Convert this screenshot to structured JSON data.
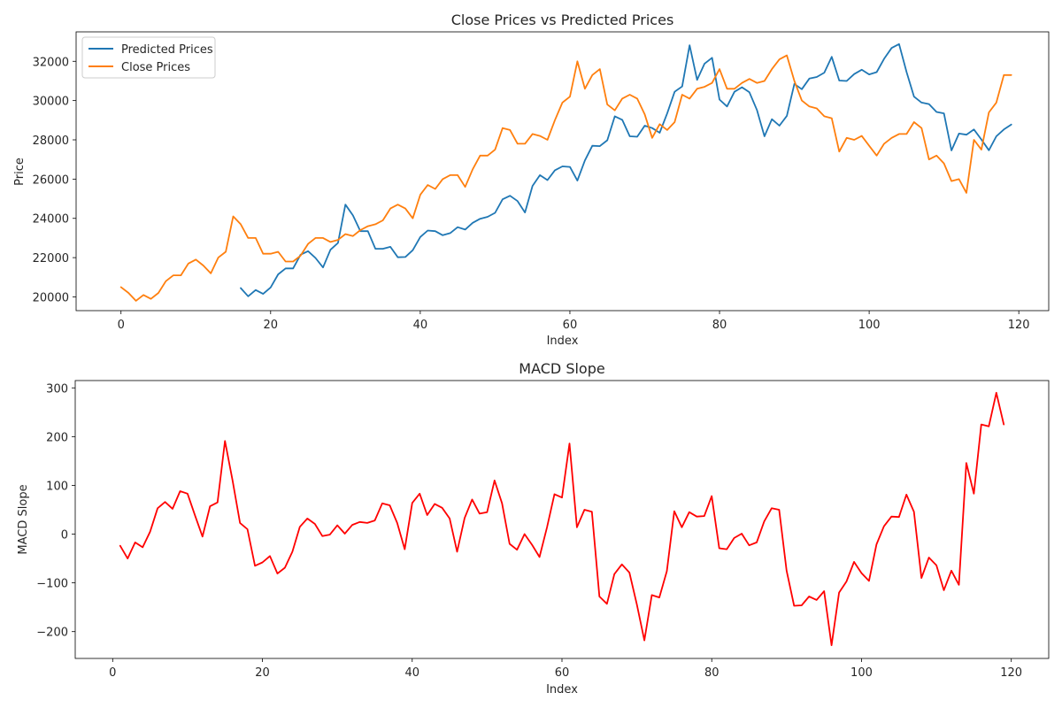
{
  "chart_data": [
    {
      "type": "line",
      "title": "Close Prices vs Predicted Prices",
      "xlabel": "Index",
      "ylabel": "Price",
      "xlim": [
        -6,
        124
      ],
      "ylim": [
        19300,
        33500
      ],
      "xticks": [
        0,
        20,
        40,
        60,
        80,
        100,
        120
      ],
      "yticks": [
        20000,
        22000,
        24000,
        26000,
        28000,
        30000,
        32000
      ],
      "legend": "top-left",
      "grid": false,
      "series": [
        {
          "name": "Predicted Prices",
          "color": "#1f77b4",
          "x_start": 16,
          "values": [
            20450,
            20030,
            20350,
            20150,
            20480,
            21150,
            21450,
            21450,
            22150,
            22330,
            21980,
            21500,
            22400,
            22750,
            24700,
            24150,
            23350,
            23350,
            22450,
            22450,
            22550,
            22020,
            22030,
            22380,
            23050,
            23380,
            23350,
            23140,
            23250,
            23550,
            23430,
            23770,
            23980,
            24080,
            24280,
            24970,
            25150,
            24880,
            24300,
            25650,
            26200,
            25950,
            26450,
            26650,
            26620,
            25920,
            26950,
            27700,
            27680,
            27980,
            29200,
            29020,
            28180,
            28160,
            28720,
            28600,
            28360,
            29350,
            30450,
            30720,
            32820,
            31050,
            31880,
            32180,
            30050,
            29700,
            30450,
            30680,
            30420,
            29520,
            28180,
            29050,
            28720,
            29220,
            30850,
            30580,
            31120,
            31200,
            31420,
            32230,
            31020,
            31000,
            31350,
            31570,
            31330,
            31450,
            32130,
            32680,
            32880,
            31450,
            30200,
            29900,
            29820,
            29420,
            29350,
            27460,
            28320,
            28260,
            28530,
            28020,
            27470,
            28180,
            28530,
            28780
          ]
        },
        {
          "name": "Close Prices",
          "color": "#ff7f0e",
          "x_start": 0,
          "values": [
            20500,
            20200,
            19800,
            20100,
            19900,
            20200,
            20800,
            21100,
            21100,
            21700,
            21900,
            21600,
            21200,
            22000,
            22300,
            24100,
            23700,
            23000,
            23000,
            22200,
            22200,
            22300,
            21800,
            21800,
            22100,
            22700,
            23000,
            23000,
            22800,
            22900,
            23200,
            23100,
            23400,
            23600,
            23700,
            23900,
            24500,
            24700,
            24500,
            24000,
            25200,
            25700,
            25500,
            26000,
            26200,
            26200,
            25600,
            26500,
            27200,
            27200,
            27500,
            28600,
            28500,
            27800,
            27800,
            28300,
            28200,
            28000,
            29000,
            29900,
            30200,
            32000,
            30600,
            31300,
            31600,
            29800,
            29500,
            30100,
            30300,
            30100,
            29300,
            28100,
            28800,
            28500,
            28900,
            30300,
            30100,
            30600,
            30700,
            30900,
            31600,
            30600,
            30600,
            30900,
            31100,
            30900,
            31000,
            31600,
            32100,
            32300,
            31000,
            30000,
            29700,
            29600,
            29200,
            29100,
            27400,
            28100,
            28000,
            28200,
            27700,
            27200,
            27800,
            28100,
            28300,
            28300,
            28900,
            28600,
            27000,
            27200,
            26800,
            25900,
            26000,
            25300,
            28000,
            27500,
            29400,
            29900,
            31300,
            31300
          ]
        }
      ]
    },
    {
      "type": "line",
      "title": "MACD Slope",
      "xlabel": "Index",
      "ylabel": "MACD Slope",
      "xlim": [
        -5,
        125
      ],
      "ylim": [
        -255,
        315
      ],
      "xticks": [
        0,
        20,
        40,
        60,
        80,
        100,
        120
      ],
      "yticks": [
        -200,
        -100,
        0,
        100,
        200,
        300
      ],
      "ytick_labels": [
        "−200",
        "−100",
        "0",
        "100",
        "200",
        "300"
      ],
      "grid": false,
      "series": [
        {
          "color": "#ff0000",
          "x_start": 1,
          "values": [
            -24,
            -50,
            -17,
            -27,
            5,
            53,
            66,
            52,
            88,
            83,
            38,
            -5,
            57,
            65,
            191,
            111,
            23,
            10,
            -65,
            -58,
            -45,
            -81,
            -69,
            -36,
            15,
            32,
            21,
            -4,
            -1,
            18,
            1,
            19,
            25,
            23,
            28,
            63,
            59,
            23,
            -31,
            64,
            83,
            39,
            62,
            54,
            32,
            -36,
            33,
            71,
            42,
            45,
            110,
            63,
            -20,
            -32,
            0,
            -22,
            -47,
            14,
            82,
            75,
            186,
            14,
            50,
            46,
            -128,
            -143,
            -82,
            -62,
            -79,
            -144,
            -218,
            -125,
            -130,
            -76,
            47,
            14,
            45,
            36,
            37,
            78,
            -29,
            -31,
            -8,
            1,
            -23,
            -17,
            26,
            53,
            50,
            -75,
            -147,
            -146,
            -128,
            -135,
            -117,
            -228,
            -120,
            -97,
            -57,
            -80,
            -96,
            -21,
            16,
            36,
            35,
            81,
            46,
            -90,
            -48,
            -64,
            -115,
            -75,
            -104,
            146,
            83,
            225,
            221,
            290,
            225
          ]
        }
      ]
    }
  ]
}
